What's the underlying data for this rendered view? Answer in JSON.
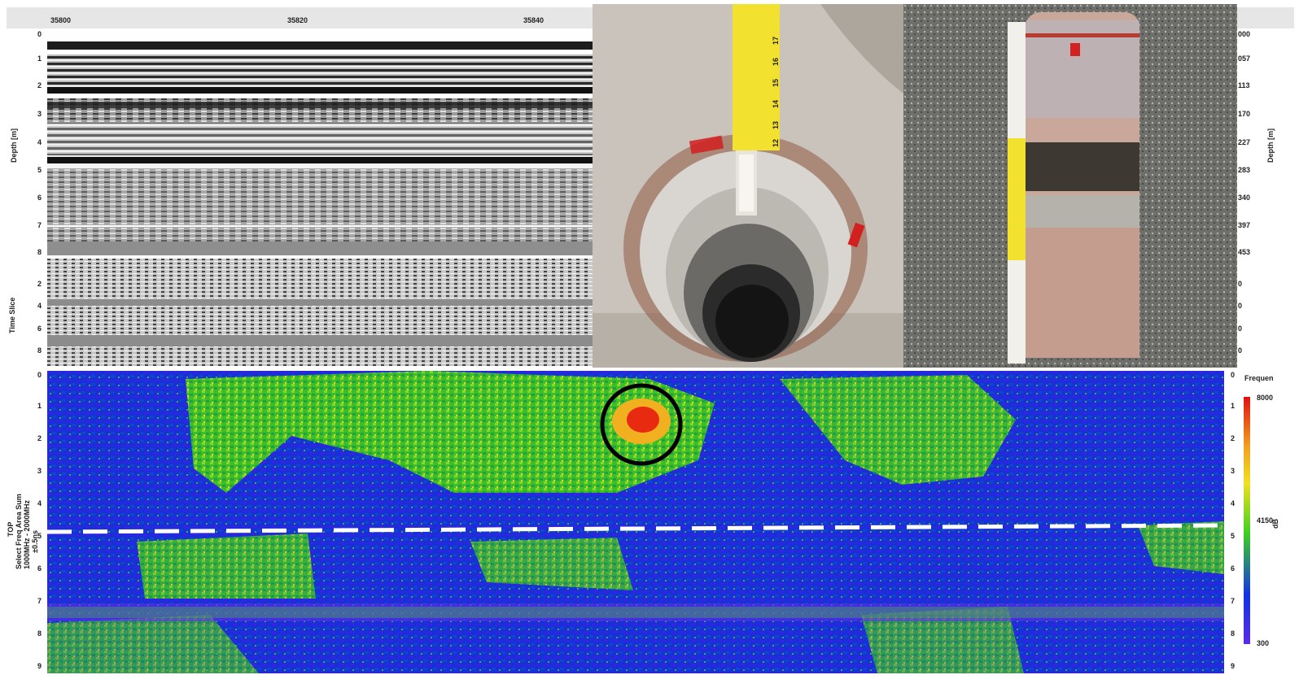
{
  "radargram": {
    "x_ticks": [
      "35800",
      "35820",
      "35840"
    ],
    "depth_ticks": [
      "0",
      "1",
      "2",
      "3",
      "4",
      "5",
      "6",
      "7",
      "8"
    ],
    "y_label": "Depth [m]"
  },
  "time_slice": {
    "ticks": [
      "2",
      "4",
      "6",
      "8"
    ],
    "y_label": "Time Slice"
  },
  "right_panel": {
    "ticks": [
      "000",
      "057",
      "113",
      "170",
      "227",
      "283",
      "340",
      "397",
      "453",
      "0",
      "0",
      "0",
      "0",
      "0"
    ],
    "y_label": "Depth [m]"
  },
  "frequency_map": {
    "left_ticks": [
      "0",
      "1",
      "2",
      "3",
      "4",
      "5",
      "6",
      "7",
      "8",
      "9"
    ],
    "right_ticks": [
      "0",
      "1",
      "2",
      "3",
      "4",
      "5",
      "6",
      "7",
      "8",
      "9"
    ],
    "y_label_lines": [
      "TOP",
      "Select Freq Area Sum",
      "1000MHz - 2000MHz",
      "±0.5ns"
    ],
    "colorbar_title": "Frequen",
    "colorbar_max": "8000",
    "colorbar_mid": "4150",
    "colorbar_min": "300",
    "colorbar_side_label": "dB",
    "colors": {
      "low": "#3a1fe0",
      "mid_low": "#1233e0",
      "mid": "#40d020",
      "high": "#f0e020",
      "peak": "#e01010"
    }
  },
  "photos": {
    "borehole_ruler_marks": [
      "15",
      "16",
      "17",
      "14",
      "13",
      "12"
    ],
    "core_ruler": "ruler"
  }
}
